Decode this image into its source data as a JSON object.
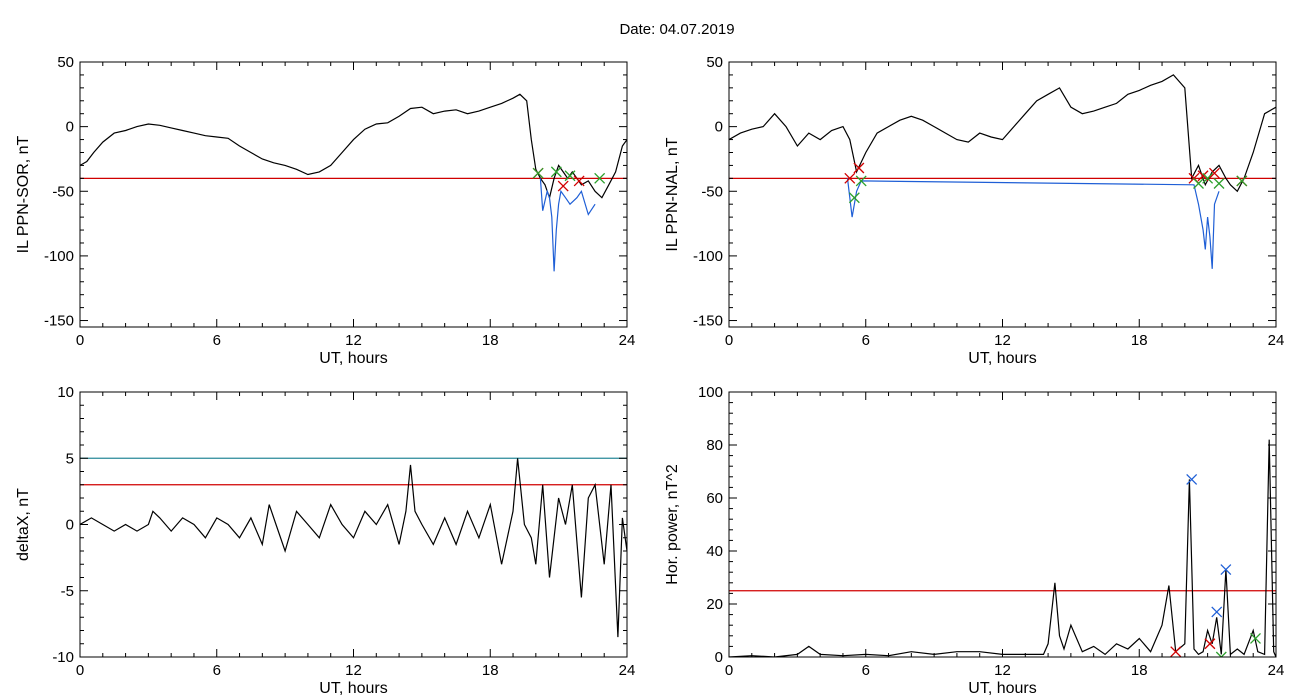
{
  "page": {
    "title": "Date:  04.07.2019"
  },
  "chart_data": [
    {
      "type": "line",
      "xlabel": "UT, hours",
      "ylabel": "IL PPN-SOR, nT",
      "xlim": [
        0,
        24
      ],
      "ylim": [
        -155,
        50
      ],
      "xticks": [
        0,
        6,
        12,
        18,
        24
      ],
      "yticks": [
        -150,
        -100,
        -50,
        0,
        50
      ],
      "threshold_lines": [
        {
          "y": -40,
          "color": "#d00000"
        }
      ],
      "series": [
        {
          "color": "#000000",
          "x": [
            0,
            0.3,
            0.6,
            1,
            1.5,
            2,
            2.5,
            3,
            3.5,
            4,
            4.5,
            5,
            5.5,
            6,
            6.5,
            7,
            7.5,
            8,
            8.5,
            9,
            9.5,
            10,
            10.5,
            11,
            11.5,
            12,
            12.5,
            13,
            13.5,
            14,
            14.5,
            15,
            15.5,
            16,
            16.5,
            17,
            17.5,
            18,
            18.5,
            19,
            19.3,
            19.6,
            19.8,
            20,
            20.2,
            20.4,
            20.6,
            20.8,
            21,
            21.2,
            21.4,
            21.6,
            21.8,
            22,
            22.3,
            22.6,
            22.9,
            23.2,
            23.5,
            23.8,
            24
          ],
          "y": [
            -30,
            -27,
            -20,
            -12,
            -5,
            -3,
            0,
            2,
            1,
            -1,
            -3,
            -5,
            -7,
            -8,
            -9,
            -15,
            -20,
            -25,
            -28,
            -30,
            -33,
            -37,
            -35,
            -30,
            -20,
            -10,
            -2,
            2,
            3,
            8,
            14,
            15,
            10,
            12,
            13,
            10,
            12,
            15,
            18,
            22,
            25,
            20,
            -10,
            -33,
            -40,
            -45,
            -55,
            -40,
            -30,
            -35,
            -40,
            -35,
            -40,
            -45,
            -42,
            -50,
            -55,
            -45,
            -35,
            -15,
            -10
          ]
        },
        {
          "color": "#1f5fd6",
          "x": [
            20.2,
            20.3,
            20.5,
            20.6,
            20.7,
            20.8,
            20.9,
            21,
            21.1,
            21.3,
            21.5,
            21.8,
            22,
            22.3,
            22.6
          ],
          "y": [
            -40,
            -65,
            -50,
            -55,
            -70,
            -112,
            -80,
            -60,
            -50,
            -55,
            -60,
            -55,
            -50,
            -68,
            -60
          ]
        }
      ],
      "markers": [
        {
          "x": 20.1,
          "y": -36,
          "color": "#d00000"
        },
        {
          "x": 20.1,
          "y": -36,
          "color": "#2ca02c"
        },
        {
          "x": 20.9,
          "y": -35,
          "color": "#2ca02c"
        },
        {
          "x": 21.2,
          "y": -46,
          "color": "#d00000"
        },
        {
          "x": 21.5,
          "y": -38,
          "color": "#2ca02c"
        },
        {
          "x": 21.9,
          "y": -42,
          "color": "#d00000"
        },
        {
          "x": 22.8,
          "y": -40,
          "color": "#2ca02c"
        }
      ]
    },
    {
      "type": "line",
      "xlabel": "UT, hours",
      "ylabel": "IL PPN-NAL, nT",
      "xlim": [
        0,
        24
      ],
      "ylim": [
        -155,
        50
      ],
      "xticks": [
        0,
        6,
        12,
        18,
        24
      ],
      "yticks": [
        -150,
        -100,
        -50,
        0,
        50
      ],
      "threshold_lines": [
        {
          "y": -40,
          "color": "#d00000"
        }
      ],
      "series": [
        {
          "color": "#000000",
          "x": [
            0,
            0.5,
            1,
            1.5,
            2,
            2.5,
            3,
            3.5,
            4,
            4.5,
            5,
            5.3,
            5.6,
            6,
            6.5,
            7,
            7.5,
            8,
            8.5,
            9,
            9.5,
            10,
            10.5,
            11,
            11.5,
            12,
            12.5,
            13,
            13.5,
            14,
            14.5,
            15,
            15.5,
            16,
            16.5,
            17,
            17.5,
            18,
            18.5,
            19,
            19.5,
            20,
            20.3,
            20.6,
            20.9,
            21.2,
            21.5,
            21.8,
            22,
            22.3,
            22.6,
            23,
            23.5,
            24
          ],
          "y": [
            -10,
            -5,
            -2,
            0,
            10,
            0,
            -15,
            -5,
            -10,
            -3,
            0,
            -10,
            -35,
            -20,
            -5,
            0,
            5,
            8,
            5,
            0,
            -5,
            -10,
            -12,
            -5,
            -8,
            -10,
            0,
            10,
            20,
            25,
            30,
            15,
            10,
            12,
            15,
            18,
            25,
            28,
            32,
            35,
            40,
            30,
            -40,
            -30,
            -45,
            -35,
            -30,
            -40,
            -45,
            -50,
            -40,
            -20,
            10,
            15
          ]
        },
        {
          "color": "#1f5fd6",
          "x": [
            5.2,
            5.4,
            5.6,
            5.8,
            20.4,
            20.6,
            20.8,
            20.9,
            21,
            21.1,
            21.2,
            21.3,
            21.5
          ],
          "y": [
            -40,
            -70,
            -50,
            -42,
            -45,
            -60,
            -80,
            -95,
            -70,
            -85,
            -110,
            -60,
            -50
          ]
        }
      ],
      "markers": [
        {
          "x": 5.3,
          "y": -40,
          "color": "#d00000"
        },
        {
          "x": 5.5,
          "y": -55,
          "color": "#2ca02c"
        },
        {
          "x": 5.7,
          "y": -32,
          "color": "#d00000"
        },
        {
          "x": 5.8,
          "y": -42,
          "color": "#2ca02c"
        },
        {
          "x": 20.4,
          "y": -40,
          "color": "#d00000"
        },
        {
          "x": 20.6,
          "y": -44,
          "color": "#2ca02c"
        },
        {
          "x": 20.8,
          "y": -38,
          "color": "#d00000"
        },
        {
          "x": 21.0,
          "y": -40,
          "color": "#2ca02c"
        },
        {
          "x": 21.3,
          "y": -36,
          "color": "#d00000"
        },
        {
          "x": 21.5,
          "y": -44,
          "color": "#2ca02c"
        },
        {
          "x": 22.5,
          "y": -42,
          "color": "#d00000"
        },
        {
          "x": 22.5,
          "y": -42,
          "color": "#2ca02c"
        }
      ]
    },
    {
      "type": "line",
      "xlabel": "UT, hours",
      "ylabel": "deltaX, nT",
      "xlim": [
        0,
        24
      ],
      "ylim": [
        -10,
        10
      ],
      "xticks": [
        0,
        6,
        12,
        18,
        24
      ],
      "yticks": [
        -10,
        -5,
        0,
        5,
        10
      ],
      "threshold_lines": [
        {
          "y": 5,
          "color": "#2a8a9a"
        },
        {
          "y": 3,
          "color": "#d00000"
        }
      ],
      "series": [
        {
          "color": "#000000",
          "x": [
            0,
            0.5,
            1,
            1.5,
            2,
            2.5,
            3,
            3.2,
            3.5,
            4,
            4.5,
            5,
            5.5,
            6,
            6.5,
            7,
            7.5,
            8,
            8.3,
            8.6,
            9,
            9.5,
            10,
            10.5,
            11,
            11.5,
            12,
            12.5,
            13,
            13.5,
            14,
            14.3,
            14.5,
            14.7,
            15,
            15.5,
            16,
            16.5,
            17,
            17.5,
            18,
            18.5,
            19,
            19.2,
            19.5,
            19.8,
            20,
            20.3,
            20.6,
            21,
            21.3,
            21.6,
            22,
            22.3,
            22.6,
            23,
            23.3,
            23.6,
            23.8,
            24
          ],
          "y": [
            0,
            0.5,
            0,
            -0.5,
            0,
            -0.5,
            0,
            1,
            0.5,
            -0.5,
            0.5,
            0,
            -1,
            0.5,
            0,
            -1,
            0.5,
            -1.5,
            1.5,
            0,
            -2,
            1,
            0,
            -1,
            1.5,
            0,
            -1,
            1,
            0,
            1.5,
            -1.5,
            1,
            4.5,
            1,
            0,
            -1.5,
            0.5,
            -1.5,
            1,
            -1,
            1.5,
            -3,
            1,
            5,
            0,
            -1,
            -3,
            3,
            -4,
            2,
            0,
            3,
            -5.5,
            2,
            3,
            -3,
            3,
            -8.5,
            0.5,
            -2
          ]
        }
      ],
      "markers": []
    },
    {
      "type": "line",
      "xlabel": "UT, hours",
      "ylabel": "Hor. power, nT^2",
      "xlim": [
        0,
        24
      ],
      "ylim": [
        0,
        100
      ],
      "xticks": [
        0,
        6,
        12,
        18,
        24
      ],
      "yticks": [
        0,
        20,
        40,
        60,
        80,
        100
      ],
      "threshold_lines": [
        {
          "y": 25,
          "color": "#d00000"
        }
      ],
      "series": [
        {
          "color": "#000000",
          "x": [
            0,
            1,
            2,
            3,
            3.5,
            4,
            5,
            6,
            7,
            8,
            9,
            10,
            11,
            12,
            13,
            13.8,
            14,
            14.3,
            14.5,
            14.7,
            15,
            15.5,
            16,
            16.5,
            17,
            17.5,
            18,
            18.5,
            19,
            19.3,
            19.6,
            20,
            20.2,
            20.4,
            20.6,
            20.8,
            21,
            21.2,
            21.4,
            21.6,
            21.8,
            22,
            22.3,
            22.6,
            23,
            23.2,
            23.5,
            23.7,
            23.9,
            24
          ],
          "y": [
            0,
            0.5,
            0,
            1,
            4,
            1,
            0.5,
            1,
            0.5,
            2,
            1,
            2,
            2,
            1,
            1,
            1,
            5,
            28,
            8,
            3,
            12,
            2,
            4,
            1,
            5,
            3,
            7,
            2,
            12,
            27,
            2,
            5,
            67,
            3,
            1,
            2,
            10,
            5,
            15,
            1,
            33,
            1,
            3,
            1,
            10,
            2,
            1,
            82,
            2,
            0
          ]
        }
      ],
      "markers": [
        {
          "x": 20.3,
          "y": 67,
          "color": "#1f5fd6"
        },
        {
          "x": 21.8,
          "y": 33,
          "color": "#1f5fd6"
        },
        {
          "x": 21.4,
          "y": 17,
          "color": "#1f5fd6"
        },
        {
          "x": 19.6,
          "y": 2,
          "color": "#d00000"
        },
        {
          "x": 21.1,
          "y": 5,
          "color": "#d00000"
        },
        {
          "x": 21.6,
          "y": 0,
          "color": "#2ca02c"
        },
        {
          "x": 23.1,
          "y": 7,
          "color": "#2ca02c"
        }
      ]
    }
  ]
}
